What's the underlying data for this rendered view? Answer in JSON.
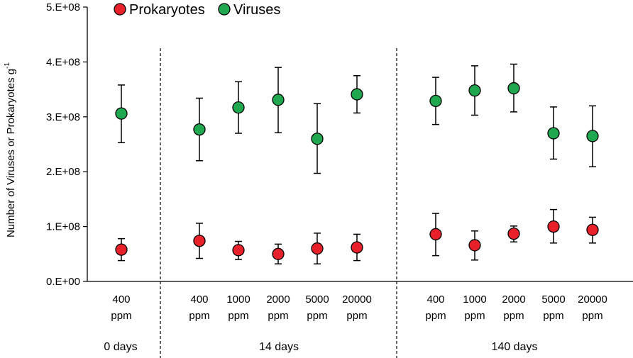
{
  "chart_data": {
    "type": "scatter",
    "ylabel": "Number of Viruses or Prokaryotes g",
    "ylabel_superscript": "-1",
    "ylim": [
      0,
      500000000
    ],
    "yticks": [
      {
        "value": 0,
        "label": "0.E+00"
      },
      {
        "value": 100000000,
        "label": "1.E+08"
      },
      {
        "value": 200000000,
        "label": "2.E+08"
      },
      {
        "value": 300000000,
        "label": "3.E+08"
      },
      {
        "value": 400000000,
        "label": "4.E+08"
      },
      {
        "value": 500000000,
        "label": "5.E+08"
      }
    ],
    "legend_position": "top-left",
    "categories": [
      {
        "value": "400",
        "unit": "ppm",
        "group": 0
      },
      {
        "value": "400",
        "unit": "ppm",
        "group": 1
      },
      {
        "value": "1000",
        "unit": "ppm",
        "group": 1
      },
      {
        "value": "2000",
        "unit": "ppm",
        "group": 1
      },
      {
        "value": "5000",
        "unit": "ppm",
        "group": 1
      },
      {
        "value": "20000",
        "unit": "ppm",
        "group": 1
      },
      {
        "value": "400",
        "unit": "ppm",
        "group": 2
      },
      {
        "value": "1000",
        "unit": "ppm",
        "group": 2
      },
      {
        "value": "2000",
        "unit": "ppm",
        "group": 2
      },
      {
        "value": "5000",
        "unit": "ppm",
        "group": 2
      },
      {
        "value": "20000",
        "unit": "ppm",
        "group": 2
      }
    ],
    "groups": [
      "0 days",
      "14 days",
      "140 days"
    ],
    "series": [
      {
        "name": "Prokaryotes",
        "color": "#e8202a",
        "values": [
          58000000,
          74000000,
          57000000,
          50000000,
          60000000,
          62000000,
          86000000,
          66000000,
          87000000,
          100000000,
          94000000
        ],
        "err_low": [
          38000000,
          42000000,
          40000000,
          32000000,
          32000000,
          38000000,
          47000000,
          39000000,
          72000000,
          70000000,
          70000000
        ],
        "err_high": [
          78000000,
          106000000,
          73000000,
          68000000,
          88000000,
          86000000,
          124000000,
          92000000,
          101000000,
          131000000,
          117000000
        ]
      },
      {
        "name": "Viruses",
        "color": "#1fa84f",
        "values": [
          306000000,
          277000000,
          317000000,
          331000000,
          260000000,
          341000000,
          329000000,
          348000000,
          352000000,
          270000000,
          265000000
        ],
        "err_low": [
          253000000,
          220000000,
          270000000,
          271000000,
          197000000,
          307000000,
          286000000,
          303000000,
          309000000,
          223000000,
          209000000
        ],
        "err_high": [
          358000000,
          334000000,
          364000000,
          390000000,
          324000000,
          375000000,
          372000000,
          393000000,
          396000000,
          318000000,
          320000000
        ]
      }
    ]
  }
}
